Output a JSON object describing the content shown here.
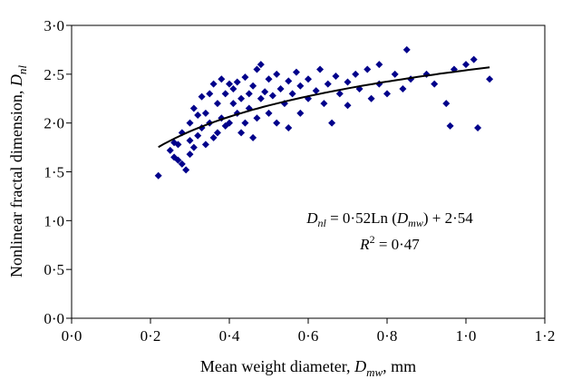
{
  "chart_data": {
    "type": "scatter",
    "xlabel": {
      "main": "Mean weight diameter, ",
      "var": "D",
      "sub": "mw",
      "unit": ", mm"
    },
    "ylabel": {
      "main": "Nonlinear fractal dimension, ",
      "var": "D",
      "sub": "nl"
    },
    "xlim": [
      0.0,
      1.2
    ],
    "ylim": [
      0.0,
      3.0
    ],
    "x_ticks": [
      0.0,
      0.2,
      0.4,
      0.6,
      0.8,
      1.0,
      1.2
    ],
    "x_tick_labels": [
      "0·0",
      "0·2",
      "0·4",
      "0·6",
      "0·8",
      "1·0",
      "1·2"
    ],
    "y_ticks": [
      0.0,
      0.5,
      1.0,
      1.5,
      2.0,
      2.5,
      3.0
    ],
    "y_tick_labels": [
      "0·0",
      "0·5",
      "1·0",
      "1·5",
      "2·0",
      "2·5",
      "3·0"
    ],
    "grid": false,
    "marker": "diamond",
    "marker_color": "#00008B",
    "trendline": {
      "model": "logarithmic",
      "a": 0.52,
      "b": 2.54,
      "x_range": [
        0.22,
        1.06
      ],
      "color": "#000000"
    },
    "equation": {
      "lhs_var": "D",
      "lhs_sub": "nl",
      "rhs_pre": " = 0·52Ln (",
      "rhs_var": "D",
      "rhs_sub": "mw",
      "rhs_post": ") + 2·54",
      "r2_var": "R",
      "r2_sup": "2",
      "r2_post": " = 0·47"
    },
    "points": [
      [
        0.22,
        1.46
      ],
      [
        0.25,
        1.72
      ],
      [
        0.26,
        1.65
      ],
      [
        0.27,
        1.62
      ],
      [
        0.28,
        1.58
      ],
      [
        0.29,
        1.52
      ],
      [
        0.26,
        1.8
      ],
      [
        0.28,
        1.9
      ],
      [
        0.27,
        1.78
      ],
      [
        0.3,
        1.68
      ],
      [
        0.3,
        1.82
      ],
      [
        0.3,
        2.0
      ],
      [
        0.31,
        1.75
      ],
      [
        0.31,
        2.15
      ],
      [
        0.32,
        1.87
      ],
      [
        0.32,
        2.08
      ],
      [
        0.33,
        1.95
      ],
      [
        0.33,
        2.27
      ],
      [
        0.34,
        2.1
      ],
      [
        0.34,
        1.78
      ],
      [
        0.35,
        2.0
      ],
      [
        0.35,
        2.3
      ],
      [
        0.36,
        2.4
      ],
      [
        0.36,
        1.85
      ],
      [
        0.37,
        2.2
      ],
      [
        0.37,
        1.9
      ],
      [
        0.38,
        2.45
      ],
      [
        0.38,
        2.05
      ],
      [
        0.39,
        2.3
      ],
      [
        0.39,
        1.97
      ],
      [
        0.4,
        2.0
      ],
      [
        0.4,
        2.4
      ],
      [
        0.41,
        2.2
      ],
      [
        0.41,
        2.35
      ],
      [
        0.42,
        2.1
      ],
      [
        0.42,
        2.42
      ],
      [
        0.43,
        2.25
      ],
      [
        0.43,
        1.9
      ],
      [
        0.44,
        2.47
      ],
      [
        0.44,
        2.0
      ],
      [
        0.45,
        2.3
      ],
      [
        0.45,
        2.15
      ],
      [
        0.46,
        2.38
      ],
      [
        0.46,
        1.85
      ],
      [
        0.47,
        2.55
      ],
      [
        0.47,
        2.05
      ],
      [
        0.48,
        2.25
      ],
      [
        0.48,
        2.6
      ],
      [
        0.49,
        2.32
      ],
      [
        0.5,
        2.1
      ],
      [
        0.5,
        2.45
      ],
      [
        0.51,
        2.28
      ],
      [
        0.52,
        2.5
      ],
      [
        0.52,
        2.0
      ],
      [
        0.53,
        2.35
      ],
      [
        0.54,
        2.2
      ],
      [
        0.55,
        2.43
      ],
      [
        0.55,
        1.95
      ],
      [
        0.56,
        2.3
      ],
      [
        0.57,
        2.52
      ],
      [
        0.58,
        2.38
      ],
      [
        0.58,
        2.1
      ],
      [
        0.6,
        2.45
      ],
      [
        0.6,
        2.25
      ],
      [
        0.62,
        2.33
      ],
      [
        0.63,
        2.55
      ],
      [
        0.64,
        2.2
      ],
      [
        0.65,
        2.4
      ],
      [
        0.66,
        2.0
      ],
      [
        0.67,
        2.48
      ],
      [
        0.68,
        2.3
      ],
      [
        0.7,
        2.42
      ],
      [
        0.7,
        2.18
      ],
      [
        0.72,
        2.5
      ],
      [
        0.73,
        2.35
      ],
      [
        0.75,
        2.55
      ],
      [
        0.76,
        2.25
      ],
      [
        0.78,
        2.4
      ],
      [
        0.78,
        2.6
      ],
      [
        0.8,
        2.3
      ],
      [
        0.82,
        2.5
      ],
      [
        0.84,
        2.35
      ],
      [
        0.85,
        2.75
      ],
      [
        0.86,
        2.45
      ],
      [
        0.9,
        2.5
      ],
      [
        0.92,
        2.4
      ],
      [
        0.95,
        2.2
      ],
      [
        0.96,
        1.97
      ],
      [
        0.97,
        2.55
      ],
      [
        1.0,
        2.6
      ],
      [
        1.02,
        2.65
      ],
      [
        1.03,
        1.95
      ],
      [
        1.06,
        2.45
      ]
    ]
  }
}
